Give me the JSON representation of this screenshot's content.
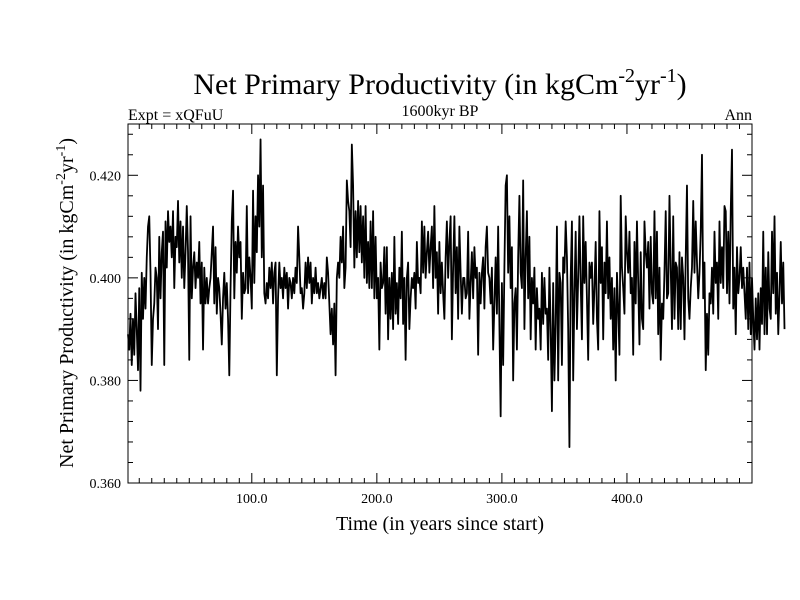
{
  "chart_data": {
    "type": "line",
    "title": "Net Primary Productivity (in kgCm",
    "title_sup1": "-2",
    "title_mid": "yr",
    "title_sup2": "-1",
    "title_end": ")",
    "subtitle_left": "Expt = xQFuU",
    "subtitle_center": "1600kyr BP",
    "subtitle_right": "Ann",
    "xlabel": "Time (in years since start)",
    "ylabel": "Net Primary Productivity (in kgCm",
    "ylabel_sup1": "-2",
    "ylabel_mid": "yr",
    "ylabel_sup2": "-1",
    "ylabel_end": ")",
    "xlim": [
      1,
      500
    ],
    "ylim": [
      0.36,
      0.43
    ],
    "x_ticks": [
      100,
      200,
      300,
      400
    ],
    "x_tick_labels": [
      "100.0",
      "200.0",
      "300.0",
      "400.0"
    ],
    "y_ticks": [
      0.36,
      0.38,
      0.4,
      0.42
    ],
    "y_tick_labels": [
      "0.360",
      "0.380",
      "0.400",
      "0.420"
    ],
    "grid": false,
    "series": [
      {
        "name": "NPP",
        "x_start": 1,
        "x_step": 1,
        "values": [
          0.389,
          0.386,
          0.393,
          0.383,
          0.392,
          0.385,
          0.397,
          0.39,
          0.382,
          0.398,
          0.378,
          0.401,
          0.392,
          0.4,
          0.394,
          0.404,
          0.41,
          0.412,
          0.401,
          0.383,
          0.392,
          0.395,
          0.402,
          0.4,
          0.39,
          0.408,
          0.396,
          0.405,
          0.409,
          0.383,
          0.411,
          0.402,
          0.413,
          0.407,
          0.41,
          0.404,
          0.413,
          0.398,
          0.408,
          0.406,
          0.415,
          0.403,
          0.411,
          0.4,
          0.41,
          0.398,
          0.405,
          0.414,
          0.405,
          0.384,
          0.412,
          0.396,
          0.402,
          0.405,
          0.398,
          0.403,
          0.4,
          0.407,
          0.395,
          0.403,
          0.386,
          0.402,
          0.395,
          0.4,
          0.395,
          0.398,
          0.4,
          0.405,
          0.41,
          0.395,
          0.406,
          0.393,
          0.4,
          0.398,
          0.393,
          0.387,
          0.396,
          0.401,
          0.394,
          0.399,
          0.392,
          0.381,
          0.398,
          0.411,
          0.417,
          0.396,
          0.407,
          0.401,
          0.41,
          0.404,
          0.407,
          0.392,
          0.401,
          0.397,
          0.398,
          0.414,
          0.397,
          0.404,
          0.4,
          0.394,
          0.417,
          0.399,
          0.412,
          0.405,
          0.42,
          0.41,
          0.427,
          0.404,
          0.418,
          0.397,
          0.395,
          0.399,
          0.396,
          0.402,
          0.398,
          0.403,
          0.395,
          0.401,
          0.403,
          0.381,
          0.396,
          0.403,
          0.398,
          0.4,
          0.396,
          0.402,
          0.398,
          0.401,
          0.394,
          0.4,
          0.399,
          0.396,
          0.4,
          0.397,
          0.402,
          0.399,
          0.41,
          0.404,
          0.397,
          0.398,
          0.394,
          0.397,
          0.403,
          0.398,
          0.404,
          0.399,
          0.403,
          0.395,
          0.4,
          0.397,
          0.402,
          0.397,
          0.399,
          0.396,
          0.398,
          0.4,
          0.396,
          0.399,
          0.396,
          0.404,
          0.401,
          0.395,
          0.389,
          0.394,
          0.387,
          0.395,
          0.381,
          0.4,
          0.403,
          0.4,
          0.408,
          0.403,
          0.41,
          0.398,
          0.402,
          0.419,
          0.415,
          0.413,
          0.406,
          0.426,
          0.418,
          0.402,
          0.413,
          0.404,
          0.415,
          0.405,
          0.414,
          0.403,
          0.412,
          0.4,
          0.414,
          0.399,
          0.407,
          0.398,
          0.411,
          0.398,
          0.413,
          0.396,
          0.408,
          0.396,
          0.4,
          0.386,
          0.403,
          0.398,
          0.399,
          0.406,
          0.393,
          0.406,
          0.388,
          0.4,
          0.392,
          0.401,
          0.39,
          0.408,
          0.393,
          0.399,
          0.391,
          0.402,
          0.396,
          0.409,
          0.391,
          0.4,
          0.384,
          0.4,
          0.403,
          0.39,
          0.396,
          0.4,
          0.398,
          0.401,
          0.394,
          0.407,
          0.399,
          0.4,
          0.397,
          0.411,
          0.401,
          0.41,
          0.4,
          0.405,
          0.409,
          0.401,
          0.406,
          0.41,
          0.398,
          0.414,
          0.4,
          0.405,
          0.393,
          0.407,
          0.397,
          0.403,
          0.397,
          0.392,
          0.404,
          0.411,
          0.4,
          0.407,
          0.412,
          0.388,
          0.402,
          0.412,
          0.397,
          0.406,
          0.392,
          0.41,
          0.401,
          0.393,
          0.4,
          0.4,
          0.396,
          0.397,
          0.409,
          0.392,
          0.399,
          0.405,
          0.396,
          0.406,
          0.4,
          0.402,
          0.385,
          0.401,
          0.395,
          0.401,
          0.404,
          0.394,
          0.406,
          0.41,
          0.401,
          0.4,
          0.395,
          0.402,
          0.386,
          0.395,
          0.404,
          0.393,
          0.41,
          0.391,
          0.373,
          0.399,
          0.383,
          0.402,
          0.418,
          0.42,
          0.401,
          0.412,
          0.398,
          0.406,
          0.38,
          0.395,
          0.398,
          0.386,
          0.404,
          0.416,
          0.401,
          0.398,
          0.419,
          0.39,
          0.404,
          0.413,
          0.396,
          0.408,
          0.388,
          0.4,
          0.395,
          0.402,
          0.386,
          0.398,
          0.392,
          0.394,
          0.386,
          0.401,
          0.391,
          0.4,
          0.393,
          0.394,
          0.384,
          0.402,
          0.39,
          0.374,
          0.399,
          0.38,
          0.391,
          0.41,
          0.38,
          0.401,
          0.399,
          0.383,
          0.404,
          0.401,
          0.411,
          0.404,
          0.39,
          0.367,
          0.4,
          0.411,
          0.38,
          0.397,
          0.409,
          0.39,
          0.4,
          0.412,
          0.399,
          0.388,
          0.412,
          0.399,
          0.407,
          0.396,
          0.384,
          0.403,
          0.4,
          0.403,
          0.391,
          0.398,
          0.407,
          0.392,
          0.386,
          0.413,
          0.399,
          0.406,
          0.388,
          0.403,
          0.397,
          0.411,
          0.396,
          0.404,
          0.392,
          0.4,
          0.386,
          0.398,
          0.38,
          0.401,
          0.394,
          0.385,
          0.416,
          0.402,
          0.398,
          0.393,
          0.412,
          0.405,
          0.401,
          0.409,
          0.397,
          0.4,
          0.385,
          0.407,
          0.395,
          0.411,
          0.399,
          0.387,
          0.405,
          0.392,
          0.39,
          0.411,
          0.405,
          0.402,
          0.407,
          0.394,
          0.408,
          0.397,
          0.395,
          0.413,
          0.396,
          0.409,
          0.389,
          0.402,
          0.384,
          0.395,
          0.392,
          0.401,
          0.413,
          0.396,
          0.397,
          0.416,
          0.402,
          0.39,
          0.412,
          0.392,
          0.403,
          0.402,
          0.39,
          0.405,
          0.39,
          0.404,
          0.4,
          0.388,
          0.404,
          0.418,
          0.396,
          0.392,
          0.398,
          0.402,
          0.415,
          0.401,
          0.411,
          0.403,
          0.396,
          0.401,
          0.409,
          0.424,
          0.396,
          0.403,
          0.382,
          0.393,
          0.385,
          0.397,
          0.395,
          0.402,
          0.393,
          0.409,
          0.399,
          0.403,
          0.392,
          0.411,
          0.399,
          0.406,
          0.398,
          0.414,
          0.413,
          0.397,
          0.409,
          0.395,
          0.413,
          0.425,
          0.394,
          0.402,
          0.389,
          0.406,
          0.397,
          0.4,
          0.406,
          0.398,
          0.402,
          0.397,
          0.392,
          0.402,
          0.39,
          0.403,
          0.389,
          0.4,
          0.392,
          0.386,
          0.396,
          0.388,
          0.397,
          0.386,
          0.398,
          0.391,
          0.409,
          0.389,
          0.402,
          0.389,
          0.405,
          0.394,
          0.392,
          0.409,
          0.397,
          0.412,
          0.393,
          0.401,
          0.389,
          0.397,
          0.407,
          0.395,
          0.403,
          0.39
        ]
      }
    ]
  }
}
